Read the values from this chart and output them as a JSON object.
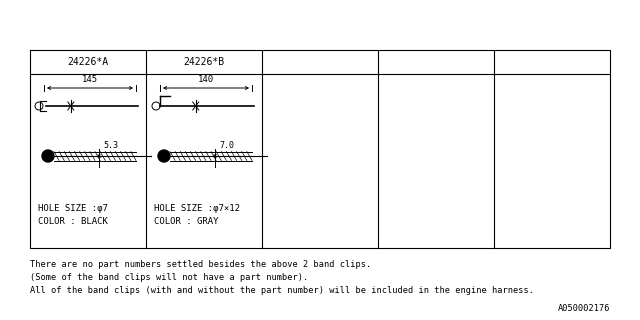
{
  "bg_color": "#ffffff",
  "header_labels": [
    "24226*A",
    "24226*B",
    "",
    "",
    ""
  ],
  "col1_dim_len": "145",
  "col1_dim_width": "5.3",
  "col1_hole": "HOLE SIZE :φ7",
  "col1_color": "COLOR : BLACK",
  "col2_dim_len": "140",
  "col2_dim_width": "7.0",
  "col2_hole": "HOLE SIZE :φ7×12",
  "col2_color": "COLOR : GRAY",
  "footer_line1": "There are no part numbers settled besides the above 2 band clips.",
  "footer_line2": "(Some of the band clips will not have a part number).",
  "footer_line3": "All of the band clips (with and without the part number) will be included in the engine harness.",
  "part_number": "A050002176",
  "line_color": "#000000"
}
